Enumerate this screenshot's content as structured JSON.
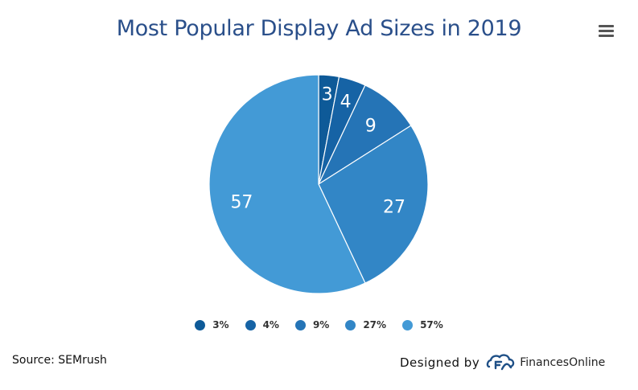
{
  "chart_data": {
    "type": "pie",
    "title": "Most Popular Display Ad Sizes in 2019",
    "slices": [
      {
        "label": "3%",
        "data_label": "3",
        "value": 3,
        "color": "#0e5a98"
      },
      {
        "label": "4%",
        "data_label": "4",
        "value": 4,
        "color": "#1663a5"
      },
      {
        "label": "9%",
        "data_label": "9",
        "value": 9,
        "color": "#2574b6"
      },
      {
        "label": "27%",
        "data_label": "27",
        "value": 27,
        "color": "#3286c6"
      },
      {
        "label": "57%",
        "data_label": "57",
        "value": 57,
        "color": "#439ad6"
      }
    ],
    "legend_position": "bottom"
  },
  "footer": {
    "source": "Source: SEMrush",
    "credit": "Designed by",
    "brand": "FinancesOnline"
  },
  "icons": {
    "menu": "hamburger-menu-icon",
    "logo": "financesonline-logo-icon"
  }
}
